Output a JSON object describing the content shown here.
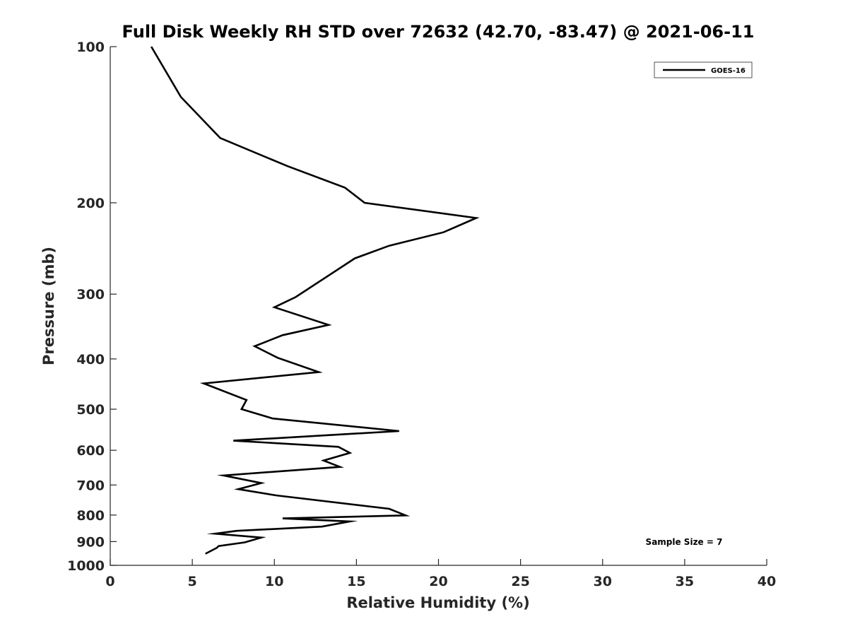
{
  "chart_data": {
    "type": "line",
    "title": "Full Disk Weekly RH STD over 72632 (42.70, -83.47) @ 2021-06-11",
    "xlabel": "Relative Humidity (%)",
    "ylabel": "Pressure (mb)",
    "xlim": [
      0,
      40
    ],
    "ylim": [
      100,
      1000
    ],
    "yscale": "log",
    "y_reversed": true,
    "grid": false,
    "x_ticks": [
      0,
      5,
      10,
      15,
      20,
      25,
      30,
      35,
      40
    ],
    "y_ticks": [
      100,
      200,
      300,
      400,
      500,
      600,
      700,
      800,
      900,
      1000
    ],
    "legend_position": "top-right",
    "series": [
      {
        "name": "GOES-16",
        "color": "#000000",
        "points": [
          [
            2.5,
            100
          ],
          [
            4.3,
            125
          ],
          [
            6.7,
            150
          ],
          [
            10.8,
            170
          ],
          [
            14.3,
            187
          ],
          [
            15.5,
            200
          ],
          [
            22.3,
            214
          ],
          [
            20.3,
            228
          ],
          [
            17.0,
            242
          ],
          [
            14.9,
            256
          ],
          [
            11.3,
            304
          ],
          [
            10.0,
            318
          ],
          [
            13.3,
            344
          ],
          [
            10.5,
            360
          ],
          [
            8.8,
            378
          ],
          [
            10.2,
            398
          ],
          [
            12.7,
            424
          ],
          [
            5.7,
            446
          ],
          [
            8.3,
            480
          ],
          [
            8.0,
            500
          ],
          [
            9.9,
            521
          ],
          [
            17.6,
            551
          ],
          [
            7.5,
            575
          ],
          [
            13.9,
            591
          ],
          [
            14.6,
            607
          ],
          [
            13.0,
            628
          ],
          [
            14.0,
            646
          ],
          [
            6.9,
            671
          ],
          [
            9.2,
            694
          ],
          [
            7.8,
            713
          ],
          [
            10.1,
            733
          ],
          [
            17.0,
            778
          ],
          [
            18.0,
            801
          ],
          [
            10.5,
            812
          ],
          [
            14.6,
            823
          ],
          [
            12.9,
            842
          ],
          [
            7.7,
            858
          ],
          [
            6.4,
            869
          ],
          [
            9.2,
            884
          ],
          [
            8.2,
            903
          ],
          [
            6.6,
            918
          ],
          [
            6.5,
            925
          ],
          [
            5.8,
            950
          ]
        ]
      }
    ],
    "annotations": [
      "Sample Size = 7"
    ]
  }
}
